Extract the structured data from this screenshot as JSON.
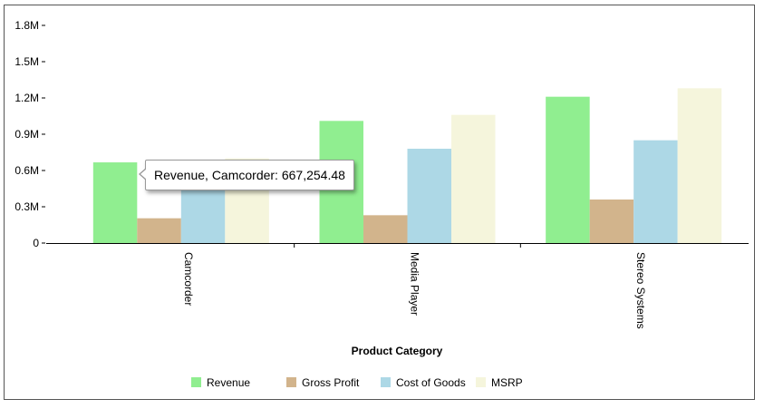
{
  "chart_data": {
    "type": "bar",
    "xlabel": "Product Category",
    "ylabel": "",
    "ylim": [
      0,
      1800000
    ],
    "yticks": [
      0,
      300000,
      600000,
      900000,
      1200000,
      1500000,
      1800000
    ],
    "ytick_labels": [
      "0",
      "0.3M",
      "0.6M",
      "0.9M",
      "1.2M",
      "1.5M",
      "1.8M"
    ],
    "categories": [
      "Camcorder",
      "Media Player",
      "Stereo Systems"
    ],
    "series": [
      {
        "name": "Revenue",
        "color": "#90ee90",
        "values": [
          667254.48,
          1010000,
          1210000
        ]
      },
      {
        "name": "Gross Profit",
        "color": "#d2b48c",
        "values": [
          205000,
          230000,
          360000
        ]
      },
      {
        "name": "Cost of Goods",
        "color": "#add8e6",
        "values": [
          460000,
          780000,
          850000
        ]
      },
      {
        "name": "MSRP",
        "color": "#f5f5dc",
        "values": [
          700000,
          1060000,
          1280000
        ]
      }
    ],
    "legend_position": "bottom",
    "grid": false
  },
  "tooltip": {
    "text": "Revenue, Camcorder: 667,254.48"
  }
}
